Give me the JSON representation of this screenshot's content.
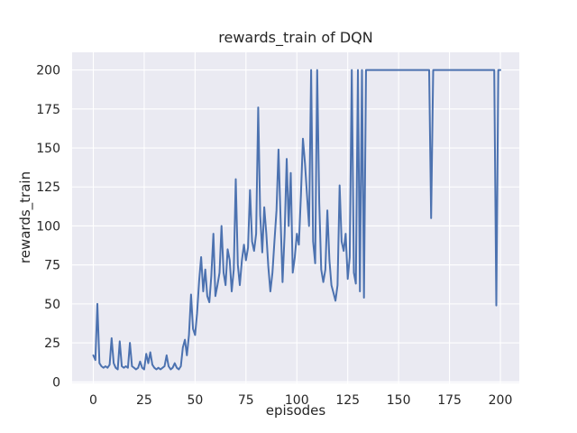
{
  "figure": {
    "background": "#FFFFFF"
  },
  "chart_data": {
    "type": "line",
    "title": "rewards_train of DQN",
    "xlabel": "episodes",
    "ylabel": "rewards_train",
    "style": "seaborn-darkgrid",
    "grid": true,
    "legend": "none",
    "x_is_index": true,
    "x_range": [
      0,
      200
    ],
    "xticks": [
      0,
      25,
      50,
      75,
      100,
      125,
      150,
      175,
      200
    ],
    "yticks": [
      0,
      25,
      50,
      75,
      100,
      125,
      150,
      175,
      200
    ],
    "xlim": [
      -10.5,
      210.5
    ],
    "ylim": [
      -1,
      211
    ],
    "colors": {
      "line": "#4C72B0",
      "axes_background": "#EAEAF2",
      "grid": "#FFFFFF",
      "text": "#262626"
    },
    "series": [
      {
        "name": "rewards_train",
        "values": [
          17,
          14,
          50,
          12,
          10,
          9,
          10,
          9,
          11,
          28,
          12,
          9,
          8,
          26,
          10,
          9,
          10,
          9,
          25,
          10,
          9,
          8,
          9,
          13,
          9,
          8,
          18,
          12,
          19,
          11,
          9,
          8,
          9,
          8,
          9,
          10,
          17,
          10,
          8,
          9,
          12,
          9,
          8,
          10,
          22,
          27,
          17,
          30,
          56,
          34,
          30,
          44,
          65,
          80,
          58,
          72,
          55,
          51,
          68,
          95,
          55,
          62,
          70,
          100,
          70,
          62,
          85,
          78,
          58,
          72,
          130,
          75,
          62,
          78,
          88,
          78,
          86,
          123,
          90,
          84,
          95,
          176,
          107,
          83,
          112,
          95,
          74,
          58,
          70,
          90,
          110,
          149,
          105,
          64,
          95,
          143,
          100,
          134,
          70,
          80,
          95,
          88,
          120,
          156,
          140,
          120,
          100,
          200,
          90,
          76,
          200,
          115,
          72,
          64,
          72,
          110,
          78,
          62,
          57,
          52,
          62,
          126,
          90,
          84,
          95,
          66,
          80,
          200,
          70,
          63,
          200,
          58,
          200,
          54,
          200,
          200,
          200,
          200,
          200,
          200,
          200,
          200,
          200,
          200,
          200,
          200,
          200,
          200,
          200,
          200,
          200,
          200,
          200,
          200,
          200,
          200,
          200,
          200,
          200,
          200,
          200,
          200,
          200,
          200,
          200,
          200,
          105,
          200,
          200,
          200,
          200,
          200,
          200,
          200,
          200,
          200,
          200,
          200,
          200,
          200,
          200,
          200,
          200,
          200,
          200,
          200,
          200,
          200,
          200,
          200,
          200,
          200,
          200,
          200,
          200,
          200,
          200,
          200,
          49,
          200,
          200
        ]
      }
    ]
  }
}
